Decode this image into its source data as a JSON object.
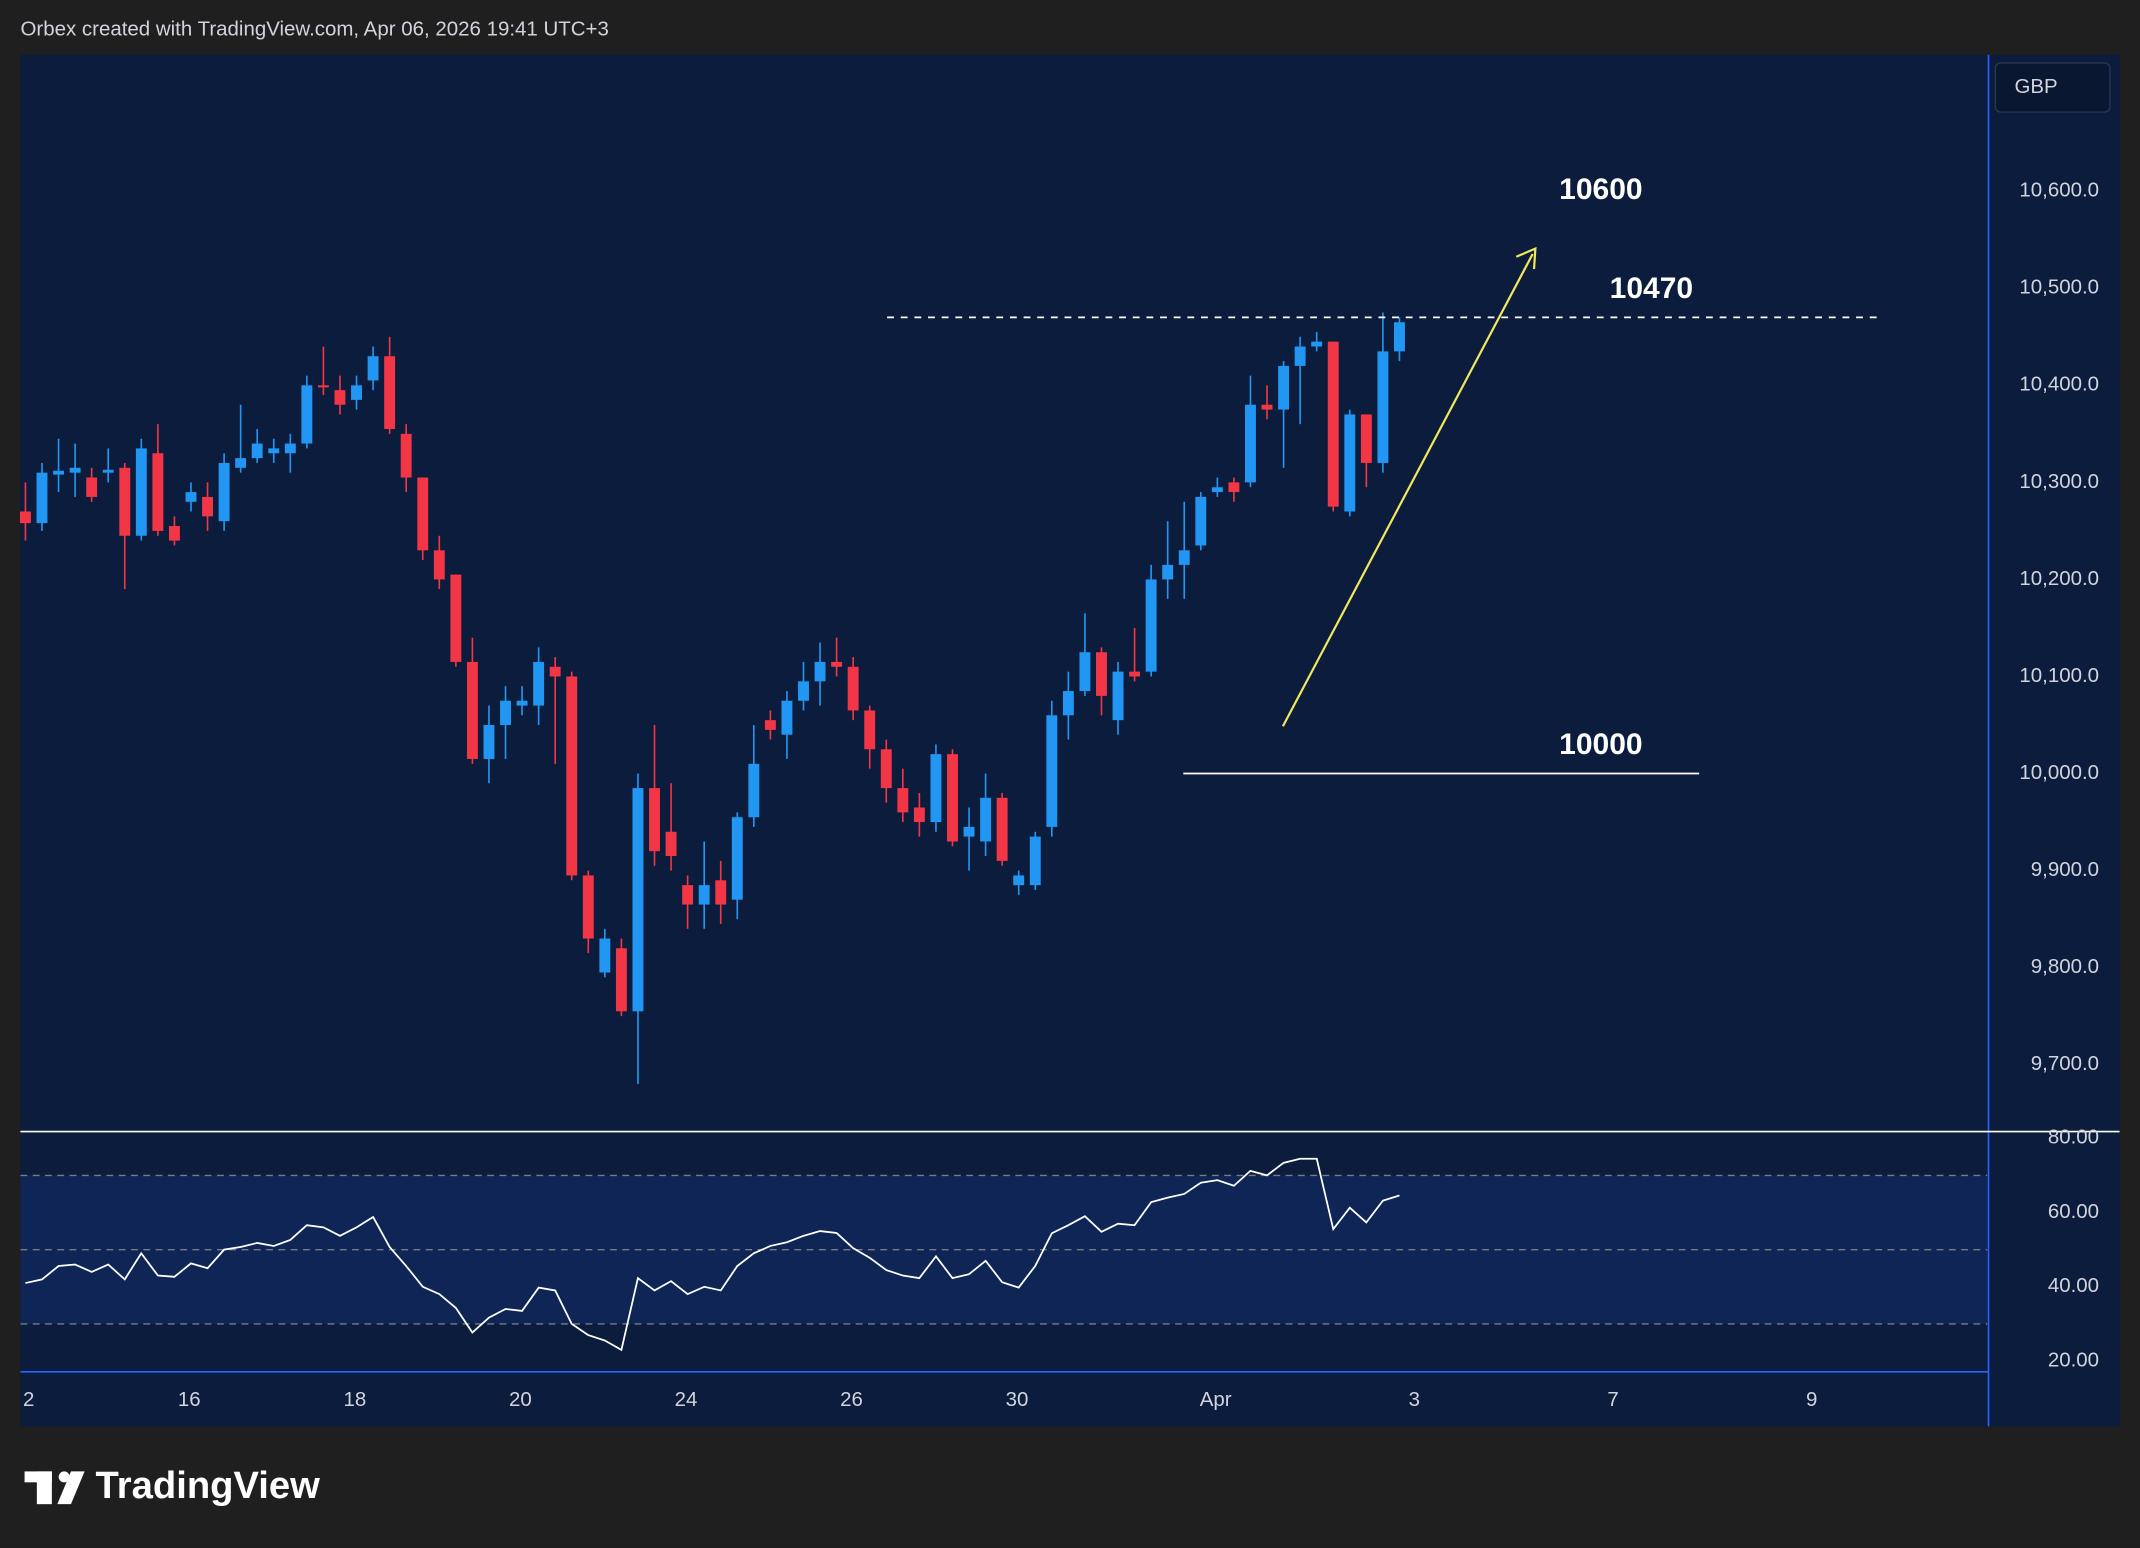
{
  "header": "Orbex created with TradingView.com, Apr 06, 2026 19:41 UTC+3",
  "logo": "TradingView",
  "chart_data": [
    {
      "type": "candlestick",
      "currency": "GBP",
      "up_color": "#2196f3",
      "down_color": "#f23645",
      "open": [
        10270,
        10258,
        10308,
        10310,
        10305,
        10310,
        10315,
        10245,
        10330,
        10255,
        10280,
        10285,
        10260,
        10315,
        10325,
        10330,
        10330,
        10340,
        10400,
        10395,
        10385,
        10405,
        10430,
        10350,
        10305,
        10230,
        10205,
        10115,
        10015,
        10050,
        10070,
        10070,
        10110,
        10100,
        9895,
        9795,
        9820,
        9755,
        9985,
        9940,
        9885,
        9865,
        9890,
        9870,
        9955,
        10055,
        10040,
        10075,
        10095,
        10115,
        10110,
        10065,
        10025,
        9985,
        9965,
        9950,
        10020,
        9935,
        9930,
        9975,
        9885,
        9885,
        9945,
        10060,
        10085,
        10125,
        10055,
        10105,
        10105,
        10200,
        10215,
        10235,
        10290,
        10300,
        10300,
        10380,
        10375,
        10420,
        10440,
        10445,
        10270,
        10370,
        10320,
        10435
      ],
      "high": [
        10300,
        10320,
        10345,
        10340,
        10315,
        10335,
        10320,
        10345,
        10360,
        10265,
        10300,
        10300,
        10330,
        10380,
        10355,
        10345,
        10350,
        10410,
        10440,
        10410,
        10410,
        10440,
        10450,
        10360,
        10305,
        10245,
        10205,
        10140,
        10070,
        10090,
        10090,
        10130,
        10120,
        10105,
        9900,
        9840,
        9830,
        10000,
        10050,
        9990,
        9895,
        9930,
        9910,
        9960,
        10050,
        10065,
        10085,
        10115,
        10135,
        10140,
        10120,
        10070,
        10035,
        10005,
        9980,
        10030,
        10025,
        9965,
        10000,
        9980,
        9900,
        9940,
        10075,
        10105,
        10165,
        10130,
        10115,
        10150,
        10215,
        10260,
        10280,
        10290,
        10305,
        10305,
        10410,
        10400,
        10425,
        10450,
        10455,
        10445,
        10375,
        10370,
        10475,
        10470
      ],
      "low": [
        10240,
        10250,
        10290,
        10285,
        10280,
        10300,
        10190,
        10240,
        10245,
        10235,
        10270,
        10250,
        10250,
        10310,
        10320,
        10320,
        10310,
        10335,
        10390,
        10370,
        10375,
        10395,
        10350,
        10290,
        10220,
        10190,
        10110,
        10010,
        9990,
        10015,
        10060,
        10050,
        10010,
        9890,
        9815,
        9790,
        9750,
        9680,
        9905,
        9900,
        9840,
        9840,
        9845,
        9850,
        9945,
        10035,
        10015,
        10065,
        10070,
        10100,
        10055,
        10005,
        9970,
        9950,
        9935,
        9940,
        9925,
        9900,
        9915,
        9905,
        9875,
        9880,
        9935,
        10035,
        10080,
        10060,
        10040,
        10095,
        10100,
        10180,
        10180,
        10230,
        10285,
        10280,
        10295,
        10365,
        10315,
        10360,
        10435,
        10270,
        10265,
        10295,
        10310,
        10425
      ],
      "close": [
        10258,
        10310,
        10312,
        10315,
        10285,
        10313,
        10245,
        10335,
        10250,
        10240,
        10290,
        10265,
        10320,
        10325,
        10340,
        10335,
        10340,
        10400,
        10398,
        10380,
        10400,
        10430,
        10355,
        10305,
        10230,
        10200,
        10115,
        10015,
        10050,
        10075,
        10075,
        10115,
        10100,
        9895,
        9830,
        9830,
        9755,
        9985,
        9920,
        9915,
        9865,
        9885,
        9865,
        9955,
        10010,
        10045,
        10075,
        10095,
        10115,
        10110,
        10065,
        10025,
        9985,
        9960,
        9950,
        10020,
        9930,
        9945,
        9975,
        9910,
        9895,
        9935,
        10060,
        10085,
        10125,
        10080,
        10105,
        10100,
        10200,
        10215,
        10230,
        10285,
        10295,
        10290,
        10380,
        10375,
        10420,
        10440,
        10445,
        10275,
        10370,
        10320,
        10435,
        10465
      ],
      "xlim": [
        -0.3,
        118.5
      ],
      "xticks": [
        {
          "value": 0.2,
          "label": "2"
        },
        {
          "value": 9.9,
          "label": "16"
        },
        {
          "value": 19.9,
          "label": "18"
        },
        {
          "value": 29.9,
          "label": "20"
        },
        {
          "value": 39.9,
          "label": "24"
        },
        {
          "value": 49.9,
          "label": "26"
        },
        {
          "value": 59.9,
          "label": "30"
        },
        {
          "value": 71.9,
          "label": "Apr"
        },
        {
          "value": 83.9,
          "label": "3"
        },
        {
          "value": 95.9,
          "label": "7"
        },
        {
          "value": 107.9,
          "label": "9"
        }
      ],
      "ylim": [
        9632.5,
        10740.6
      ],
      "yticks": [
        {
          "value": 9700,
          "label": "9,700.0"
        },
        {
          "value": 9800,
          "label": "9,800.0"
        },
        {
          "value": 9900,
          "label": "9,900.0"
        },
        {
          "value": 10000,
          "label": "10,000.0"
        },
        {
          "value": 10100,
          "label": "10,100.0"
        },
        {
          "value": 10200,
          "label": "10,200.0"
        },
        {
          "value": 10300,
          "label": "10,300.0"
        },
        {
          "value": 10400,
          "label": "10,400.0"
        },
        {
          "value": 10500,
          "label": "10,500.0"
        },
        {
          "value": 10600,
          "label": "10,600.0"
        }
      ],
      "levels": [
        10470,
        10000
      ],
      "target": 10600
    },
    {
      "type": "line",
      "color": "#ffffff",
      "values": [
        41,
        42,
        45.6,
        46,
        44,
        46,
        42,
        49,
        43,
        42.7,
        46.3,
        45,
        50,
        50.7,
        51.8,
        51,
        52.6,
        56.6,
        56,
        53.7,
        56,
        58.8,
        50.7,
        45.6,
        40,
        38,
        34.3,
        27.7,
        31.7,
        34,
        33.5,
        39.8,
        39,
        30,
        27,
        25.5,
        23,
        42.3,
        39,
        41.5,
        38,
        40,
        39,
        45.6,
        49,
        51,
        52,
        53.7,
        55,
        54.5,
        50.4,
        47.8,
        44.5,
        43,
        42.3,
        48.2,
        42.3,
        43.4,
        47,
        41.2,
        39.8,
        45.6,
        54.4,
        56.6,
        59,
        54.8,
        57,
        56.6,
        62.8,
        64,
        65,
        68,
        68.7,
        67.2,
        71.2,
        70,
        73.4,
        74.5,
        74.5,
        55.5,
        61.3,
        57.3,
        63.2,
        64.6
      ],
      "ylim": [
        17.1,
        81.8
      ],
      "yticks": [
        {
          "value": 20,
          "label": "20.00"
        },
        {
          "value": 40,
          "label": "40.00"
        },
        {
          "value": 60,
          "label": "60.00"
        },
        {
          "value": 80,
          "label": "80.00"
        }
      ],
      "levels": [
        70,
        50,
        30
      ]
    }
  ]
}
